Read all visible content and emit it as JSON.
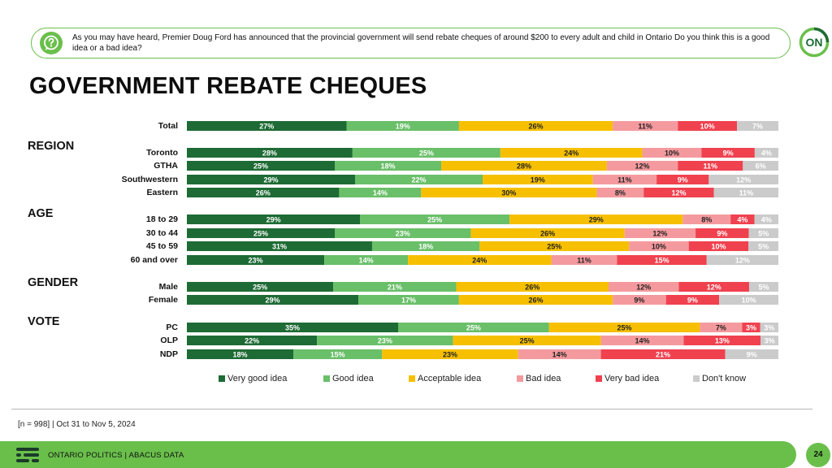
{
  "question": {
    "text": "As you may have heard, Premier Doug Ford has announced that the provincial government will send rebate cheques of around $200 to every adult and child in Ontario  Do you think this is a good idea or a bad idea?"
  },
  "logo": {
    "text": "ON"
  },
  "title": "GOVERNMENT REBATE CHEQUES",
  "chart_data": {
    "type": "bar",
    "orientation": "horizontal",
    "stacked": true,
    "unit": "%",
    "legend_position": "bottom",
    "legend": [
      {
        "name": "Very good idea",
        "color": "#1e6b35"
      },
      {
        "name": "Good idea",
        "color": "#6abf69"
      },
      {
        "name": "Acceptable idea",
        "color": "#f6c000"
      },
      {
        "name": "Bad idea",
        "color": "#f49a9e"
      },
      {
        "name": "Very bad idea",
        "color": "#f0414f"
      },
      {
        "name": "Don't know",
        "color": "#cbcbcb"
      }
    ],
    "groups": [
      {
        "name": "",
        "rows": [
          {
            "label": "Total",
            "values": [
              27,
              19,
              26,
              11,
              10,
              7
            ]
          }
        ]
      },
      {
        "name": "REGION",
        "rows": [
          {
            "label": "Toronto",
            "values": [
              28,
              25,
              24,
              10,
              9,
              4
            ]
          },
          {
            "label": "GTHA",
            "values": [
              25,
              18,
              28,
              12,
              11,
              6
            ]
          },
          {
            "label": "Southwestern",
            "values": [
              29,
              22,
              19,
              11,
              9,
              12
            ]
          },
          {
            "label": "Eastern",
            "values": [
              26,
              14,
              30,
              8,
              12,
              11
            ]
          }
        ]
      },
      {
        "name": "AGE",
        "rows": [
          {
            "label": "18 to 29",
            "values": [
              29,
              25,
              29,
              8,
              4,
              4
            ]
          },
          {
            "label": "30 to 44",
            "values": [
              25,
              23,
              26,
              12,
              9,
              5
            ]
          },
          {
            "label": "45 to 59",
            "values": [
              31,
              18,
              25,
              10,
              10,
              5
            ]
          },
          {
            "label": "60 and over",
            "values": [
              23,
              14,
              24,
              11,
              15,
              12
            ]
          }
        ]
      },
      {
        "name": "GENDER",
        "rows": [
          {
            "label": "Male",
            "values": [
              25,
              21,
              26,
              12,
              12,
              5
            ]
          },
          {
            "label": "Female",
            "values": [
              29,
              17,
              26,
              9,
              9,
              10
            ]
          }
        ]
      },
      {
        "name": "VOTE",
        "rows": [
          {
            "label": "PC",
            "values": [
              35,
              25,
              25,
              7,
              3,
              3
            ]
          },
          {
            "label": "OLP",
            "values": [
              22,
              23,
              25,
              14,
              13,
              3
            ]
          },
          {
            "label": "NDP",
            "values": [
              18,
              15,
              23,
              14,
              21,
              9
            ]
          }
        ]
      }
    ]
  },
  "footer": {
    "sample_note": "[n = 998] | Oct 31 to Nov 5, 2024",
    "brand_text": "ONTARIO POLITICS  |  ABACUS DATA",
    "page_number": "24"
  }
}
